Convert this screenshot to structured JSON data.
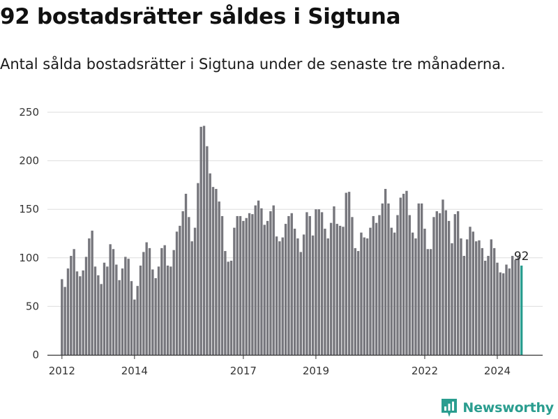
{
  "header": {
    "title": "92 bostadsrätter såldes i Sigtuna",
    "subtitle": "Antal sålda bostadsrätter i Sigtuna under de senaste tre månaderna."
  },
  "brand": {
    "name": "Newsworthy",
    "color": "#2a9d8f"
  },
  "colors": {
    "bar": "#76767c",
    "highlight": "#2a9d8f",
    "grid": "#dddddd",
    "axis": "#333333"
  },
  "chart_data": {
    "type": "bar",
    "title": "92 bostadsrätter såldes i Sigtuna",
    "xlabel": "",
    "ylabel": "",
    "ylim": [
      0,
      250
    ],
    "yticks": [
      0,
      50,
      100,
      150,
      200,
      250
    ],
    "x_start": 2012.0,
    "x_step": 0.0833333,
    "xlim": [
      2011.6,
      2025.25
    ],
    "xtick_labels": [
      "2012",
      "2014",
      "2017",
      "2019",
      "2022",
      "2024"
    ],
    "xtick_values": [
      2012,
      2014,
      2017,
      2019,
      2022,
      2024
    ],
    "values": [
      78,
      70,
      89,
      102,
      109,
      86,
      81,
      87,
      101,
      120,
      128,
      91,
      82,
      73,
      95,
      91,
      114,
      109,
      93,
      77,
      89,
      101,
      99,
      76,
      57,
      71,
      92,
      106,
      116,
      110,
      88,
      79,
      91,
      110,
      113,
      92,
      91,
      108,
      127,
      133,
      148,
      166,
      142,
      117,
      131,
      177,
      235,
      236,
      215,
      187,
      173,
      171,
      158,
      143,
      107,
      96,
      97,
      131,
      143,
      143,
      138,
      141,
      146,
      145,
      154,
      159,
      151,
      134,
      138,
      148,
      154,
      122,
      117,
      121,
      135,
      143,
      146,
      130,
      120,
      106,
      124,
      147,
      143,
      123,
      150,
      150,
      147,
      130,
      120,
      136,
      153,
      135,
      133,
      132,
      167,
      168,
      142,
      110,
      107,
      126,
      121,
      120,
      131,
      143,
      136,
      144,
      156,
      171,
      156,
      131,
      126,
      144,
      162,
      166,
      169,
      144,
      126,
      120,
      156,
      156,
      130,
      109,
      109,
      142,
      148,
      146,
      160,
      149,
      138,
      115,
      145,
      148,
      120,
      102,
      119,
      132,
      127,
      117,
      118,
      110,
      97,
      102,
      119,
      110,
      95,
      85,
      84,
      93,
      89,
      102,
      98,
      101,
      92
    ],
    "highlight_index": 152,
    "highlight_label": "92"
  }
}
